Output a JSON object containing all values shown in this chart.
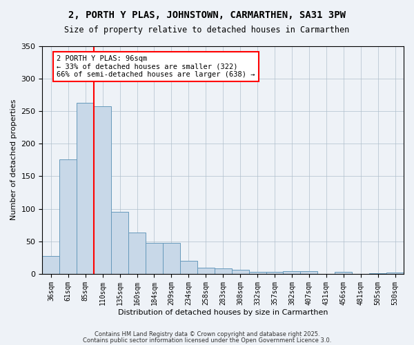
{
  "title": "2, PORTH Y PLAS, JOHNSTOWN, CARMARTHEN, SA31 3PW",
  "subtitle": "Size of property relative to detached houses in Carmarthen",
  "xlabel": "Distribution of detached houses by size in Carmarthen",
  "ylabel": "Number of detached properties",
  "bar_color": "#c8d8e8",
  "bar_edge_color": "#6699bb",
  "categories": [
    "36sqm",
    "61sqm",
    "85sqm",
    "110sqm",
    "135sqm",
    "160sqm",
    "184sqm",
    "209sqm",
    "234sqm",
    "258sqm",
    "283sqm",
    "308sqm",
    "332sqm",
    "357sqm",
    "382sqm",
    "407sqm",
    "431sqm",
    "456sqm",
    "481sqm",
    "505sqm",
    "530sqm"
  ],
  "values": [
    27,
    176,
    263,
    257,
    95,
    63,
    48,
    48,
    20,
    10,
    8,
    6,
    3,
    3,
    4,
    4,
    0,
    3,
    0,
    1,
    2
  ],
  "vline_x": 2.5,
  "vline_color": "red",
  "annotation_text": "2 PORTH Y PLAS: 96sqm\n← 33% of detached houses are smaller (322)\n66% of semi-detached houses are larger (638) →",
  "ylim": [
    0,
    350
  ],
  "yticks": [
    0,
    50,
    100,
    150,
    200,
    250,
    300,
    350
  ],
  "footnote1": "Contains HM Land Registry data © Crown copyright and database right 2025.",
  "footnote2": "Contains public sector information licensed under the Open Government Licence 3.0.",
  "bg_color": "#eef2f7",
  "grid_color": "#b0bfcc"
}
